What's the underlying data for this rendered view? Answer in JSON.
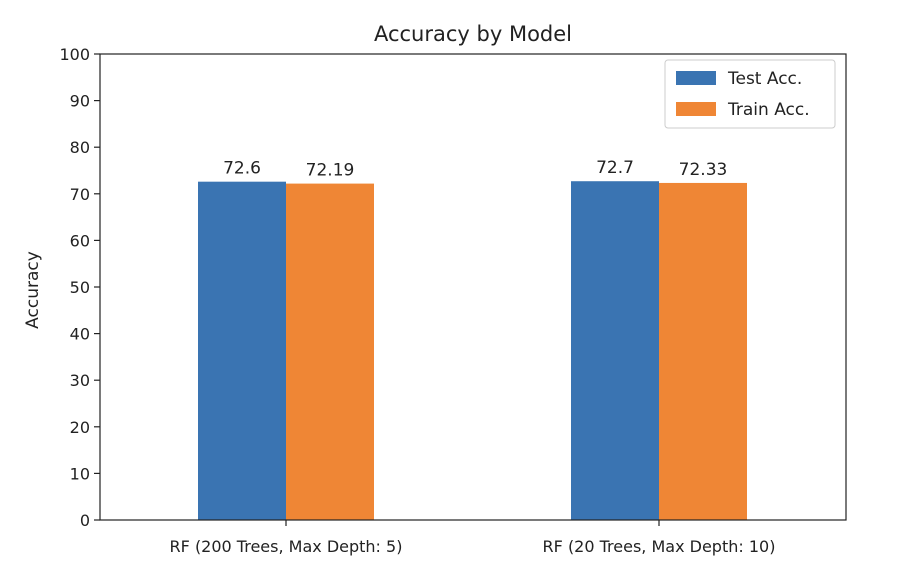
{
  "chart_data": {
    "type": "bar",
    "title": "Accuracy by Model",
    "xlabel": "",
    "ylabel": "Accuracy",
    "categories": [
      "RF (200 Trees, Max Depth: 5)",
      "RF (20 Trees, Max Depth: 10)"
    ],
    "series": [
      {
        "name": "Test Acc.",
        "values": [
          72.6,
          72.7
        ],
        "labels": [
          "72.6",
          "72.7"
        ],
        "color": "#3a74b2"
      },
      {
        "name": "Train Acc.",
        "values": [
          72.19,
          72.33
        ],
        "labels": [
          "72.19",
          "72.33"
        ],
        "color": "#ef8635"
      }
    ],
    "ylim": [
      0,
      100
    ],
    "yticks": [
      0,
      10,
      20,
      30,
      40,
      50,
      60,
      70,
      80,
      90,
      100
    ],
    "ytick_labels": [
      "0",
      "10",
      "20",
      "30",
      "40",
      "50",
      "60",
      "70",
      "80",
      "90",
      "100"
    ],
    "grid": false,
    "legend_position": "top-right"
  }
}
